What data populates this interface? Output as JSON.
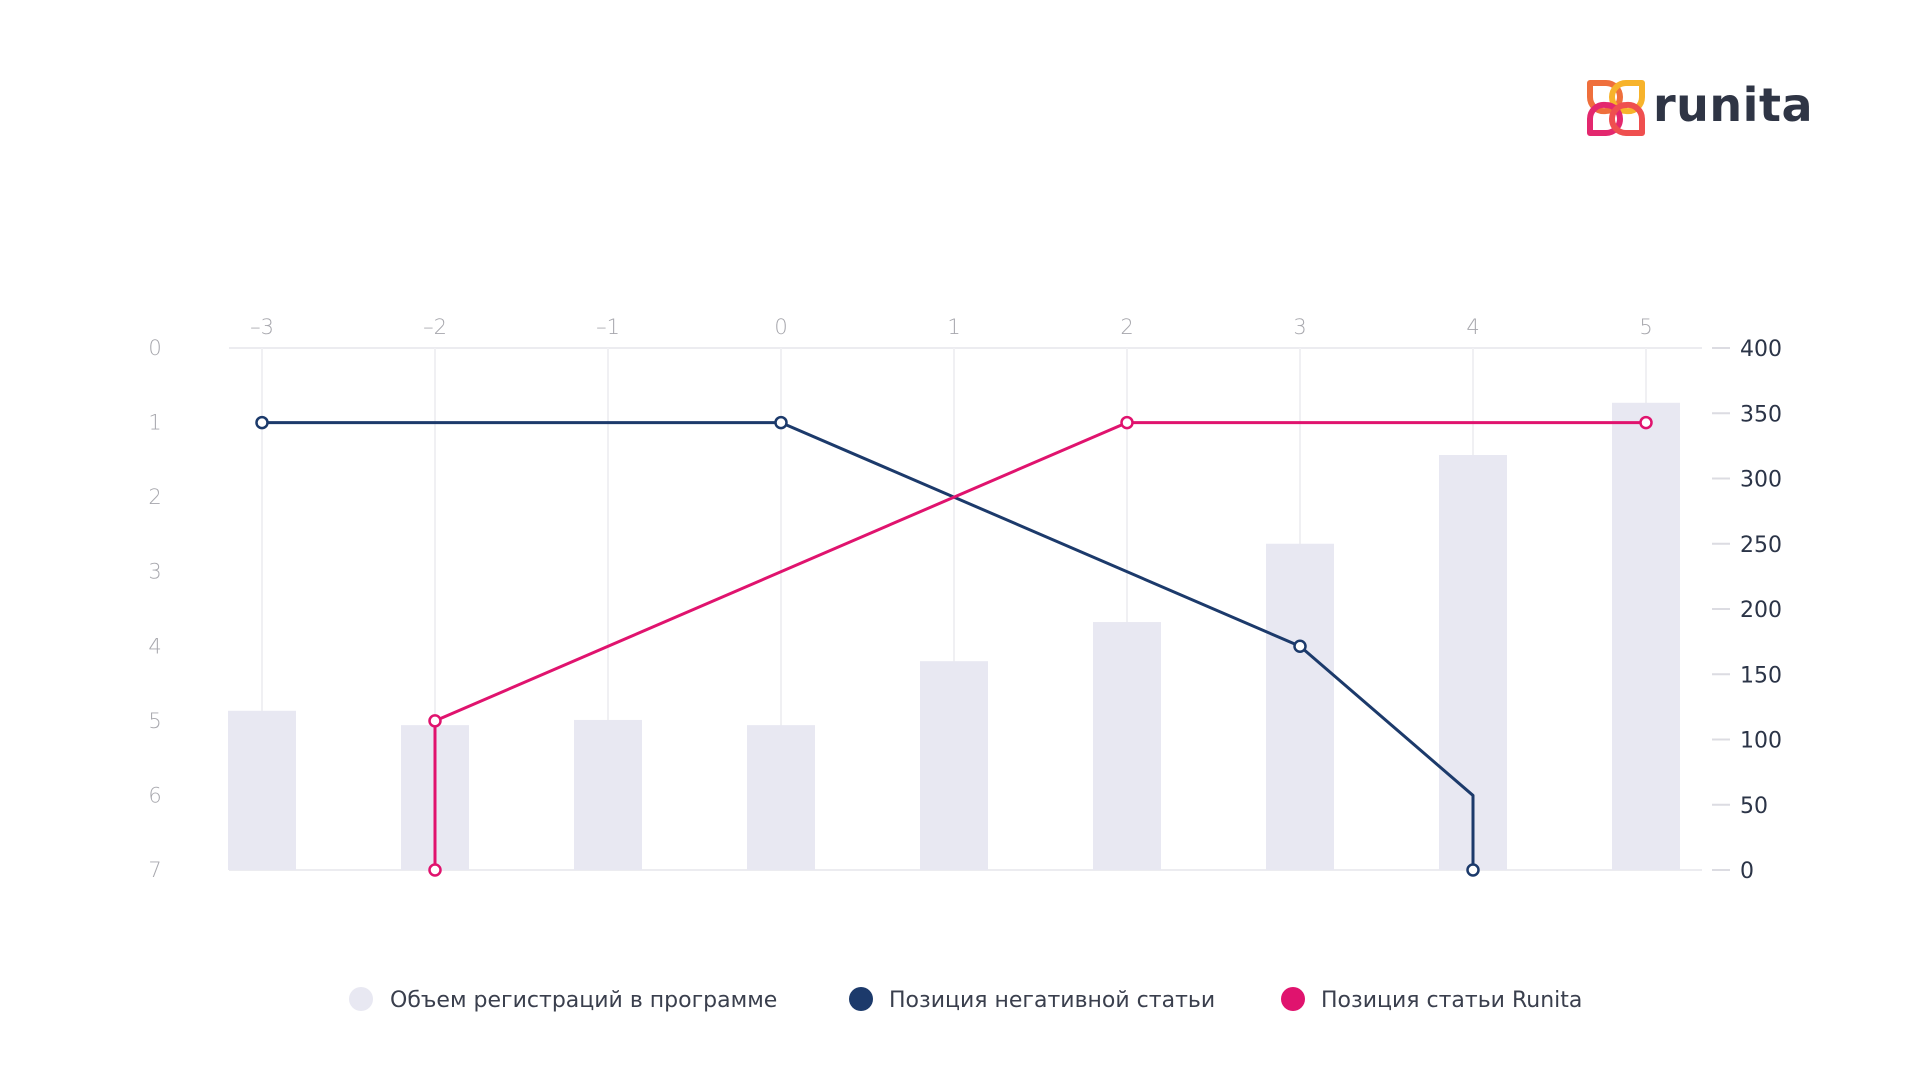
{
  "brand": {
    "name": "runita",
    "logo_colors": [
      "#f7b32b",
      "#ef6f3c",
      "#e3286e"
    ]
  },
  "chart_data": {
    "type": "bar+line",
    "title": "",
    "x": [
      -3,
      -2,
      -1,
      0,
      1,
      2,
      3,
      4,
      5
    ],
    "x_tick_labels": [
      "–3",
      "–2",
      "–1",
      "0",
      "1",
      "2",
      "3",
      "4",
      "5"
    ],
    "left_axis": {
      "ticks": [
        0,
        1,
        2,
        3,
        4,
        5,
        6,
        7
      ],
      "range": [
        0,
        7
      ],
      "inverted": true,
      "label": ""
    },
    "right_axis": {
      "ticks": [
        0,
        50,
        100,
        150,
        200,
        250,
        300,
        350,
        400
      ],
      "range": [
        0,
        400
      ],
      "label": ""
    },
    "grid": true,
    "legend_position": "bottom",
    "series": [
      {
        "name": "Объем регистраций в программе",
        "kind": "bar",
        "axis": "right",
        "color": "#e8e8f2",
        "values": [
          122,
          111,
          115,
          111,
          160,
          190,
          250,
          318,
          358
        ]
      },
      {
        "name": "Позиция негативной статьи",
        "kind": "line",
        "axis": "left",
        "color": "#1c3a6b",
        "points": [
          [
            -3,
            1
          ],
          [
            0,
            1
          ],
          [
            3,
            4
          ],
          [
            4,
            6
          ],
          [
            4,
            7
          ]
        ],
        "markers": [
          [
            -3,
            1
          ],
          [
            0,
            1
          ],
          [
            3,
            4
          ],
          [
            4,
            7
          ]
        ]
      },
      {
        "name": "Позиция статьи Runita",
        "kind": "line",
        "axis": "left",
        "color": "#e0136e",
        "points": [
          [
            -2,
            7
          ],
          [
            -2,
            5
          ],
          [
            2,
            1
          ],
          [
            5,
            1
          ]
        ],
        "markers": [
          [
            -2,
            7
          ],
          [
            -2,
            5
          ],
          [
            2,
            1
          ],
          [
            5,
            1
          ]
        ]
      }
    ],
    "legend": [
      {
        "label": "Объем регистраций в программе",
        "color": "#e8e8f2"
      },
      {
        "label": "Позиция негативной статьи",
        "color": "#1c3a6b"
      },
      {
        "label": "Позиция статьи Runita",
        "color": "#e0136e"
      }
    ]
  }
}
